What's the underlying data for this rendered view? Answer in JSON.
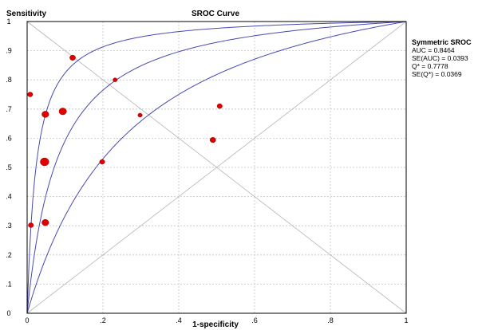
{
  "chart_data": {
    "type": "scatter",
    "title": "SROC Curve",
    "ylabel": "Sensitivity",
    "xlabel": "1-specificity",
    "xlim": [
      0,
      1
    ],
    "ylim": [
      0,
      1
    ],
    "x_ticks": [
      "0",
      ".2",
      ".4",
      ".6",
      ".8",
      "1"
    ],
    "y_ticks": [
      "0",
      ".1",
      ".2",
      ".3",
      ".4",
      ".5",
      ".6",
      ".7",
      ".8",
      ".9",
      "1"
    ],
    "grid": true,
    "legend_position": "right",
    "legend": {
      "title": "Symmetric SROC",
      "lines": [
        "AUC = 0.8464",
        "SE(AUC) = 0.0393",
        "Q* = 0.7778",
        "SE(Q*) = 0.0369"
      ]
    },
    "curves": [
      {
        "type": "sroc",
        "dor": 42
      },
      {
        "type": "sroc",
        "dor": 13
      },
      {
        "type": "sroc",
        "dor": 4.5
      }
    ],
    "reference_lines": [
      "diagonal",
      "anti-diagonal"
    ],
    "points": [
      {
        "x": 0.12,
        "y": 0.876,
        "w": 1.0
      },
      {
        "x": 0.008,
        "y": 0.75,
        "w": 0.9
      },
      {
        "x": 0.232,
        "y": 0.8,
        "w": 0.75
      },
      {
        "x": 0.048,
        "y": 0.682,
        "w": 1.2
      },
      {
        "x": 0.094,
        "y": 0.692,
        "w": 1.3
      },
      {
        "x": 0.298,
        "y": 0.679,
        "w": 0.75
      },
      {
        "x": 0.508,
        "y": 0.71,
        "w": 0.9
      },
      {
        "x": 0.49,
        "y": 0.594,
        "w": 1.0
      },
      {
        "x": 0.046,
        "y": 0.519,
        "w": 1.5
      },
      {
        "x": 0.198,
        "y": 0.519,
        "w": 0.9
      },
      {
        "x": 0.01,
        "y": 0.302,
        "w": 0.9
      },
      {
        "x": 0.048,
        "y": 0.311,
        "w": 1.2
      }
    ],
    "colors": {
      "curve": "#4848b4",
      "point": "#e00000",
      "grid": "#c4c4c4",
      "reference": "#b4b4b4"
    }
  }
}
